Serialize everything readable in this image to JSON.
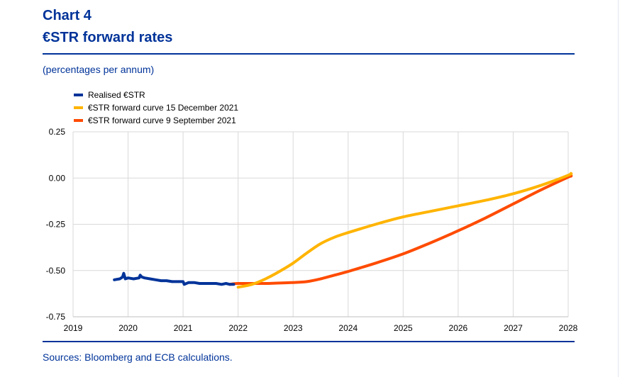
{
  "header": {
    "chart_number": "Chart 4",
    "title": "€STR forward rates",
    "unit_note": "(percentages per annum)"
  },
  "footer": {
    "source": "Sources: Bloomberg and ECB calculations."
  },
  "colors": {
    "brand": "#003399",
    "realised": "#003399",
    "december_curve": "#FFB400",
    "september_curve": "#FF4B00",
    "grid": "#d9d9d9"
  },
  "chart_data": {
    "type": "line",
    "title": "€STR forward rates",
    "ylabel": "percentages per annum",
    "xlabel": "",
    "xlim": [
      2019,
      2028
    ],
    "ylim": [
      -0.75,
      0.25
    ],
    "x_ticks": [
      "2019",
      "2020",
      "2021",
      "2022",
      "2023",
      "2024",
      "2025",
      "2026",
      "2027",
      "2028"
    ],
    "y_ticks": [
      "0.25",
      "0.00",
      "-0.25",
      "-0.50",
      "-0.75"
    ],
    "y_tick_values": [
      0.25,
      0.0,
      -0.25,
      -0.5,
      -0.75
    ],
    "grid": true,
    "legend_position": "top-left",
    "series": [
      {
        "name": "Realised €STR",
        "color": "#003399",
        "x": [
          2019.75,
          2019.85,
          2019.9,
          2019.92,
          2019.95,
          2020.0,
          2020.1,
          2020.2,
          2020.22,
          2020.25,
          2020.3,
          2020.4,
          2020.5,
          2020.6,
          2020.7,
          2020.8,
          2020.9,
          2021.0,
          2021.02,
          2021.1,
          2021.2,
          2021.3,
          2021.4,
          2021.5,
          2021.6,
          2021.7,
          2021.78,
          2021.85,
          2021.92
        ],
        "y": [
          -0.55,
          -0.545,
          -0.535,
          -0.515,
          -0.545,
          -0.54,
          -0.545,
          -0.54,
          -0.525,
          -0.535,
          -0.54,
          -0.545,
          -0.55,
          -0.555,
          -0.555,
          -0.56,
          -0.56,
          -0.56,
          -0.575,
          -0.565,
          -0.565,
          -0.57,
          -0.57,
          -0.57,
          -0.57,
          -0.575,
          -0.57,
          -0.575,
          -0.575
        ]
      },
      {
        "name": "€STR forward curve 15 December 2021",
        "color": "#FFB400",
        "x": [
          2022.0,
          2022.25,
          2022.5,
          2022.75,
          2023.0,
          2023.25,
          2023.5,
          2023.75,
          2024.0,
          2024.5,
          2025.0,
          2025.5,
          2026.0,
          2026.5,
          2027.0,
          2027.5,
          2028.0,
          2028.05
        ],
        "y": [
          -0.59,
          -0.575,
          -0.545,
          -0.505,
          -0.46,
          -0.405,
          -0.355,
          -0.32,
          -0.295,
          -0.25,
          -0.21,
          -0.18,
          -0.15,
          -0.12,
          -0.085,
          -0.04,
          0.015,
          0.025
        ]
      },
      {
        "name": "€STR forward curve 9 September 2021",
        "color": "#FF4B00",
        "x": [
          2021.85,
          2022.0,
          2022.5,
          2023.0,
          2023.25,
          2023.5,
          2023.75,
          2024.0,
          2024.5,
          2025.0,
          2025.5,
          2026.0,
          2026.5,
          2027.0,
          2027.5,
          2028.0,
          2028.05
        ],
        "y": [
          -0.575,
          -0.57,
          -0.57,
          -0.565,
          -0.56,
          -0.545,
          -0.525,
          -0.505,
          -0.46,
          -0.41,
          -0.35,
          -0.285,
          -0.215,
          -0.14,
          -0.065,
          0.005,
          0.01
        ]
      }
    ]
  }
}
